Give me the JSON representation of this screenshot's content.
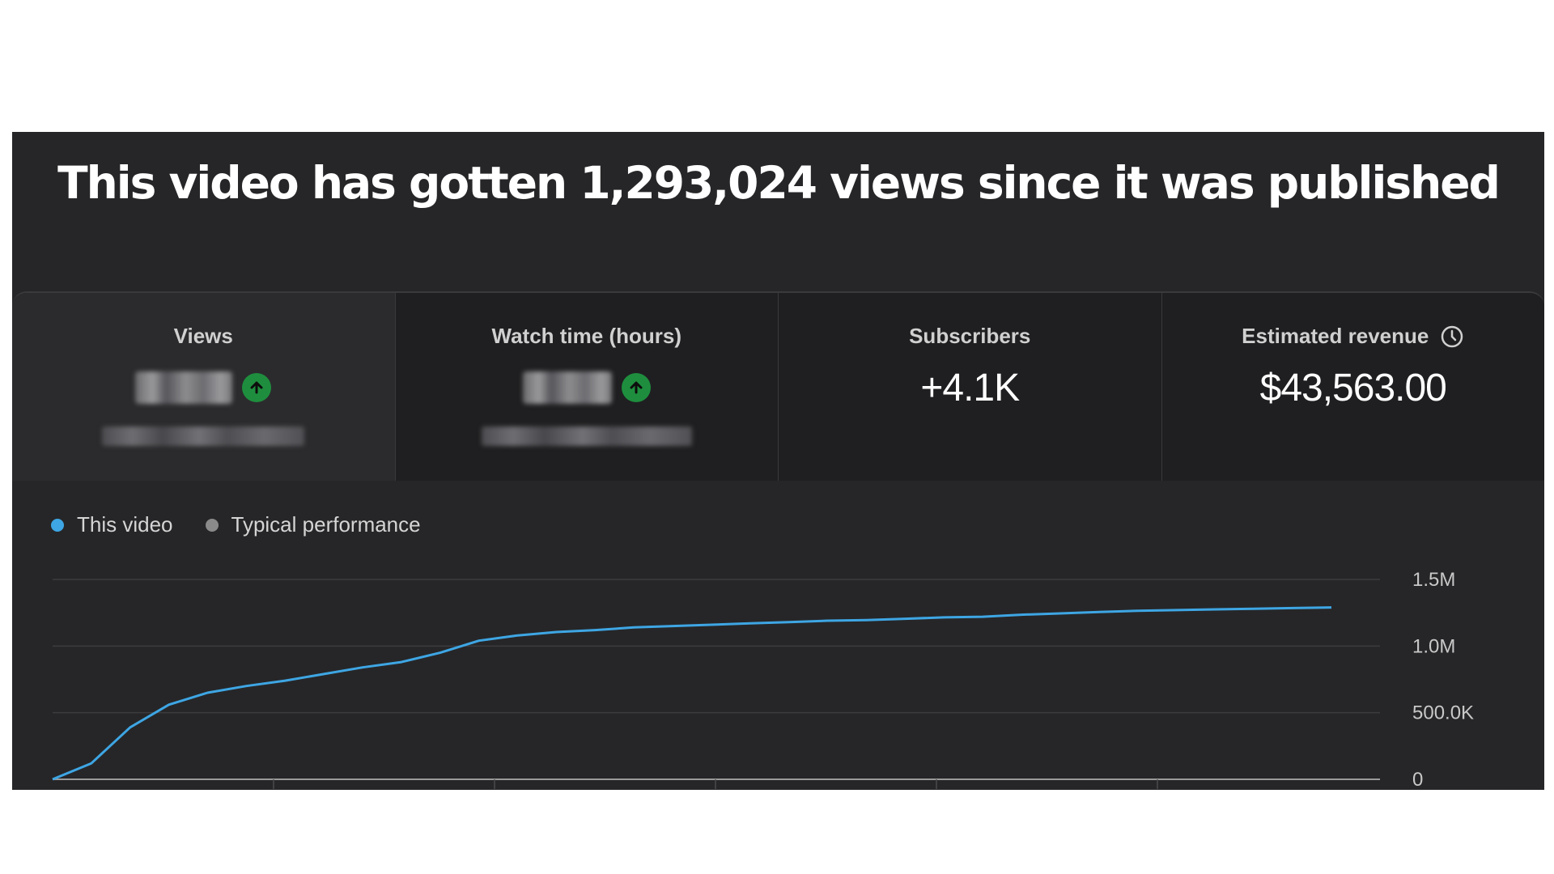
{
  "headline": "This video has gotten 1,293,024 views since it was published",
  "metrics": [
    {
      "title": "Views",
      "value": "",
      "obscured": true,
      "trend": "up",
      "selected": true
    },
    {
      "title": "Watch time (hours)",
      "value": "",
      "obscured": true,
      "trend": "up",
      "selected": false
    },
    {
      "title": "Subscribers",
      "value": "+4.1K",
      "obscured": false,
      "selected": false
    },
    {
      "title": "Estimated revenue",
      "value": "$43,563.00",
      "obscured": false,
      "info_icon": "clock-icon",
      "selected": false
    }
  ],
  "legend": [
    {
      "label": "This video",
      "color": "#3ea6e4"
    },
    {
      "label": "Typical performance",
      "color": "#8a8a8a"
    }
  ],
  "chart_data": {
    "type": "line",
    "series": [
      {
        "name": "This video",
        "color": "#3ea6e4",
        "values": [
          0,
          120000,
          390000,
          560000,
          650000,
          700000,
          740000,
          790000,
          840000,
          880000,
          950000,
          1040000,
          1080000,
          1105000,
          1120000,
          1140000,
          1150000,
          1160000,
          1170000,
          1180000,
          1190000,
          1195000,
          1205000,
          1215000,
          1220000,
          1235000,
          1245000,
          1255000,
          1265000,
          1270000,
          1275000,
          1280000,
          1285000,
          1290000
        ]
      }
    ],
    "y_ticks": [
      "0",
      "500.0K",
      "1.0M",
      "1.5M"
    ],
    "ylim": [
      0,
      1500000
    ],
    "grid": true,
    "legend_position": "top-left"
  }
}
